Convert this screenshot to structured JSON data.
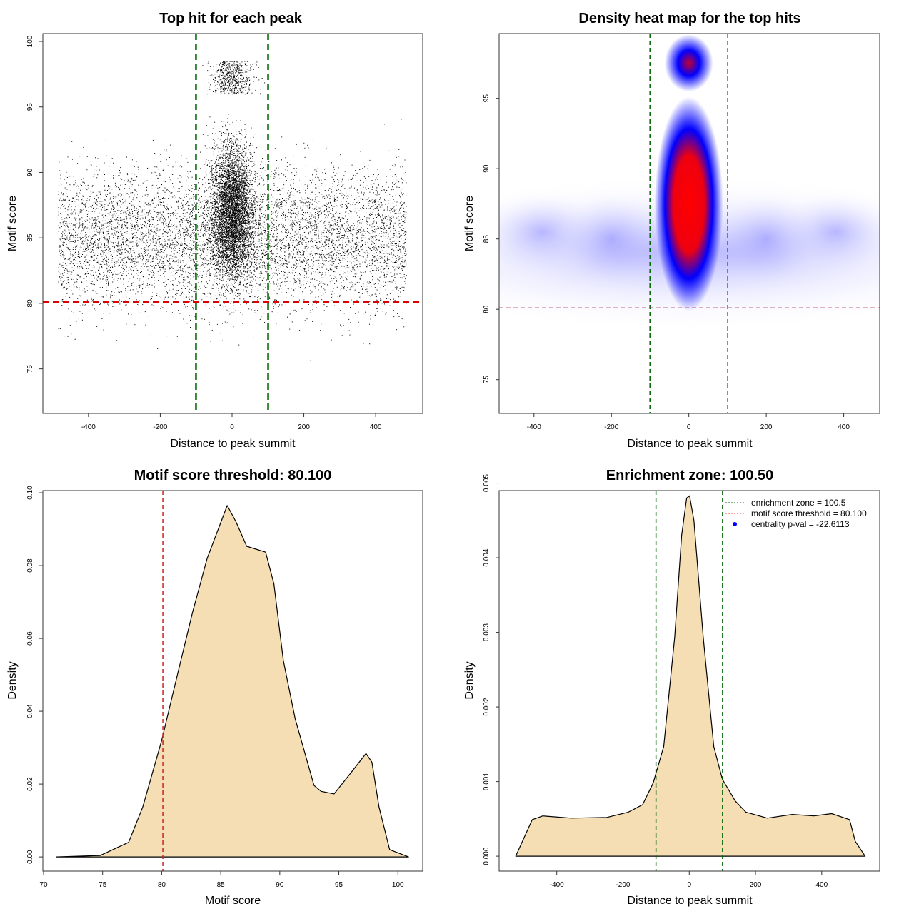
{
  "colors": {
    "points": "#000000",
    "threshold": "#dd0000",
    "zone": "#006400",
    "fill": "#f5deb3",
    "pval": "#0000ff"
  },
  "chart_data": [
    {
      "type": "scatter",
      "title": "Top hit for each peak",
      "xlabel": "Distance to peak summit",
      "ylabel": "Motif score",
      "xlim": [
        -527,
        531
      ],
      "ylim": [
        71.6,
        100.6
      ],
      "xticks": [
        -400,
        -200,
        0,
        200,
        400
      ],
      "yticks": [
        75,
        80,
        85,
        90,
        95,
        100
      ],
      "vlines": [
        -100.5,
        100.5
      ],
      "hline": 80.1,
      "grid": false
    },
    {
      "type": "heatmap",
      "title": "Density heat map for the top hits",
      "xlabel": "Distance to peak summit",
      "ylabel": "Motif score",
      "xlim": [
        -490,
        493
      ],
      "ylim": [
        72.6,
        99.6
      ],
      "xticks": [
        -400,
        -200,
        0,
        200,
        400
      ],
      "yticks": [
        75,
        80,
        85,
        90,
        95
      ],
      "vlines": [
        -100.5,
        100.5
      ],
      "hline": 80.1,
      "colors": [
        "#ffffff",
        "#0000ff",
        "#ff0000"
      ],
      "hotspots": [
        {
          "x": 0,
          "y": 87.5,
          "level": 1.0
        },
        {
          "x": 0,
          "y": 97.5,
          "level": 0.8
        }
      ]
    },
    {
      "type": "area",
      "title": "Motif score threshold: 80.100",
      "xlabel": "Motif score",
      "ylabel": "Density",
      "xlim": [
        69.94,
        102.1
      ],
      "ylim": [
        -0.0039,
        0.1006
      ],
      "xticks": [
        70,
        75,
        80,
        85,
        90,
        95,
        100
      ],
      "yticks": [
        0,
        0.02,
        0.04,
        0.06,
        0.08,
        0.1
      ],
      "ytick_labels": [
        "0.00",
        "0.02",
        "0.04",
        "0.06",
        "0.08",
        "0.10"
      ],
      "vlines": [
        80.1
      ],
      "x": [
        71.1,
        74.8,
        77.2,
        78.4,
        80,
        81.4,
        82.6,
        83.85,
        85.55,
        86.3,
        87.2,
        88.8,
        89.5,
        90.3,
        91.3,
        92.9,
        93.5,
        94.6,
        96,
        97.3,
        97.8,
        98.4,
        99.3,
        100.9
      ],
      "y": [
        0,
        0.0004,
        0.004,
        0.0137,
        0.032,
        0.051,
        0.067,
        0.082,
        0.0965,
        0.092,
        0.0853,
        0.0837,
        0.075,
        0.054,
        0.038,
        0.0196,
        0.018,
        0.0173,
        0.023,
        0.0284,
        0.026,
        0.0137,
        0.002,
        0
      ]
    },
    {
      "type": "area",
      "title": "Enrichment zone: 100.50",
      "xlabel": "Distance to peak summit",
      "ylabel": "Density",
      "xlim": [
        -574,
        575
      ],
      "ylim": [
        -0.0002,
        0.0049
      ],
      "xticks": [
        -400,
        -200,
        0,
        200,
        400
      ],
      "yticks": [
        0,
        0.001,
        0.002,
        0.003,
        0.004,
        0.005
      ],
      "ytick_labels": [
        "0.000",
        "0.001",
        "0.002",
        "0.003",
        "0.004",
        "0.005"
      ],
      "vlines": [
        -100.5,
        100.5
      ],
      "x": [
        -524,
        -474,
        -442,
        -356,
        -249,
        -184,
        -141,
        -109,
        -77,
        -44,
        -23,
        -8,
        1,
        14,
        42,
        74,
        100,
        139,
        171,
        236,
        311,
        376,
        430,
        484,
        501,
        531
      ],
      "y": [
        0,
        0.00049,
        0.00054,
        0.00051,
        0.00052,
        0.00059,
        0.00069,
        0.00098,
        0.00147,
        0.00294,
        0.0043,
        0.0048,
        0.00483,
        0.0045,
        0.00294,
        0.00147,
        0.00103,
        0.00074,
        0.00059,
        0.00051,
        0.00056,
        0.00054,
        0.00057,
        0.00049,
        0.0002,
        0
      ],
      "legend": {
        "position": "top-right",
        "entries": [
          "enrichment zone = 100.5",
          "motif score threshold = 80.100",
          "centrality p-val = -22.6113"
        ]
      }
    }
  ]
}
